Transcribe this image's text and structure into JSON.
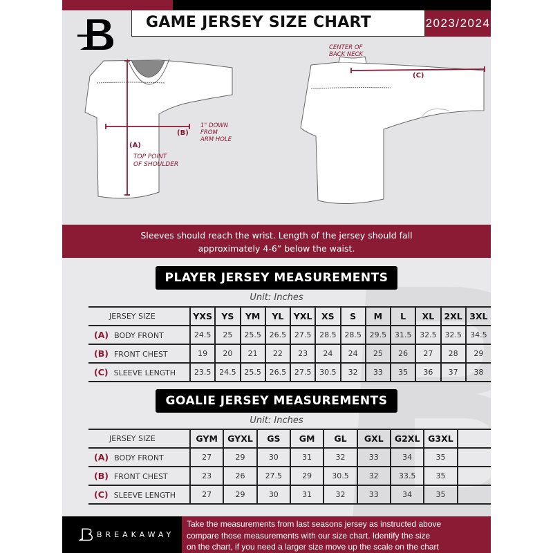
{
  "header": {
    "title": "GAME JERSEY SIZE CHART",
    "season": "2023/2024",
    "logo_letter": "B"
  },
  "diagram": {
    "center_back_neck": [
      "CENTER OF",
      "BACK NECK"
    ],
    "label_a": "(A)",
    "label_b": "(B)",
    "label_c": "(C)",
    "b_note": [
      "1\" DOWN",
      "FROM",
      "ARM HOLE"
    ],
    "a_note": [
      "TOP POINT",
      "OF SHOULDER"
    ]
  },
  "instructions": [
    "Sleeves should reach the wrist. Length of the jersey should fall",
    "approximately 4-6” below the waist."
  ],
  "player": {
    "title": "PLAYER JERSEY MEASUREMENTS",
    "unit": "Unit: Inches",
    "size_header": "JERSEY SIZE",
    "sizes": [
      "YXS",
      "YS",
      "YM",
      "YL",
      "YXL",
      "XS",
      "S",
      "M",
      "L",
      "XL",
      "2XL",
      "3XL"
    ],
    "rows": [
      {
        "letter": "(A)",
        "label": "BODY FRONT",
        "values": [
          "24.5",
          "25",
          "25.5",
          "26.5",
          "27.5",
          "28.5",
          "28.5",
          "29.5",
          "31.5",
          "32.5",
          "32.5",
          "34.5"
        ]
      },
      {
        "letter": "(B)",
        "label": "FRONT CHEST",
        "values": [
          "19",
          "20",
          "21",
          "22",
          "23",
          "24",
          "24",
          "25",
          "26",
          "27",
          "28",
          "29"
        ]
      },
      {
        "letter": "(C)",
        "label": "SLEEVE LENGTH",
        "values": [
          "23.5",
          "24.5",
          "25.5",
          "26.5",
          "27.5",
          "30.5",
          "32",
          "33",
          "35",
          "36",
          "37",
          "38"
        ]
      }
    ]
  },
  "goalie": {
    "title": "GOALIE JERSEY MEASUREMENTS",
    "unit": "Unit: Inches",
    "size_header": "JERSEY SIZE",
    "sizes": [
      "GYM",
      "GYXL",
      "GS",
      "GM",
      "GL",
      "GXL",
      "G2XL",
      "G3XL",
      ""
    ],
    "rows": [
      {
        "letter": "(A)",
        "label": "BODY FRONT",
        "values": [
          "27",
          "29",
          "30",
          "31",
          "32",
          "33",
          "34",
          "35",
          ""
        ]
      },
      {
        "letter": "(B)",
        "label": "FRONT CHEST",
        "values": [
          "23",
          "26",
          "27.5",
          "29",
          "30.5",
          "32",
          "33.5",
          "35",
          ""
        ]
      },
      {
        "letter": "(C)",
        "label": "SLEEVE LENGTH",
        "values": [
          "27",
          "29",
          "30",
          "31",
          "32",
          "33",
          "34",
          "35",
          ""
        ]
      }
    ]
  },
  "footer": {
    "brand": "BREAKAWAY",
    "lines": [
      "Take the measurements from last seasons jersey as instructed above",
      "compare those measurements  with our size chart. Identify the size",
      "on the chart, if you need a larger size move up the scale on the chart"
    ]
  },
  "colors": {
    "accent": "#8b1a35",
    "dark": "#000000",
    "background": "#e4e4e6"
  }
}
